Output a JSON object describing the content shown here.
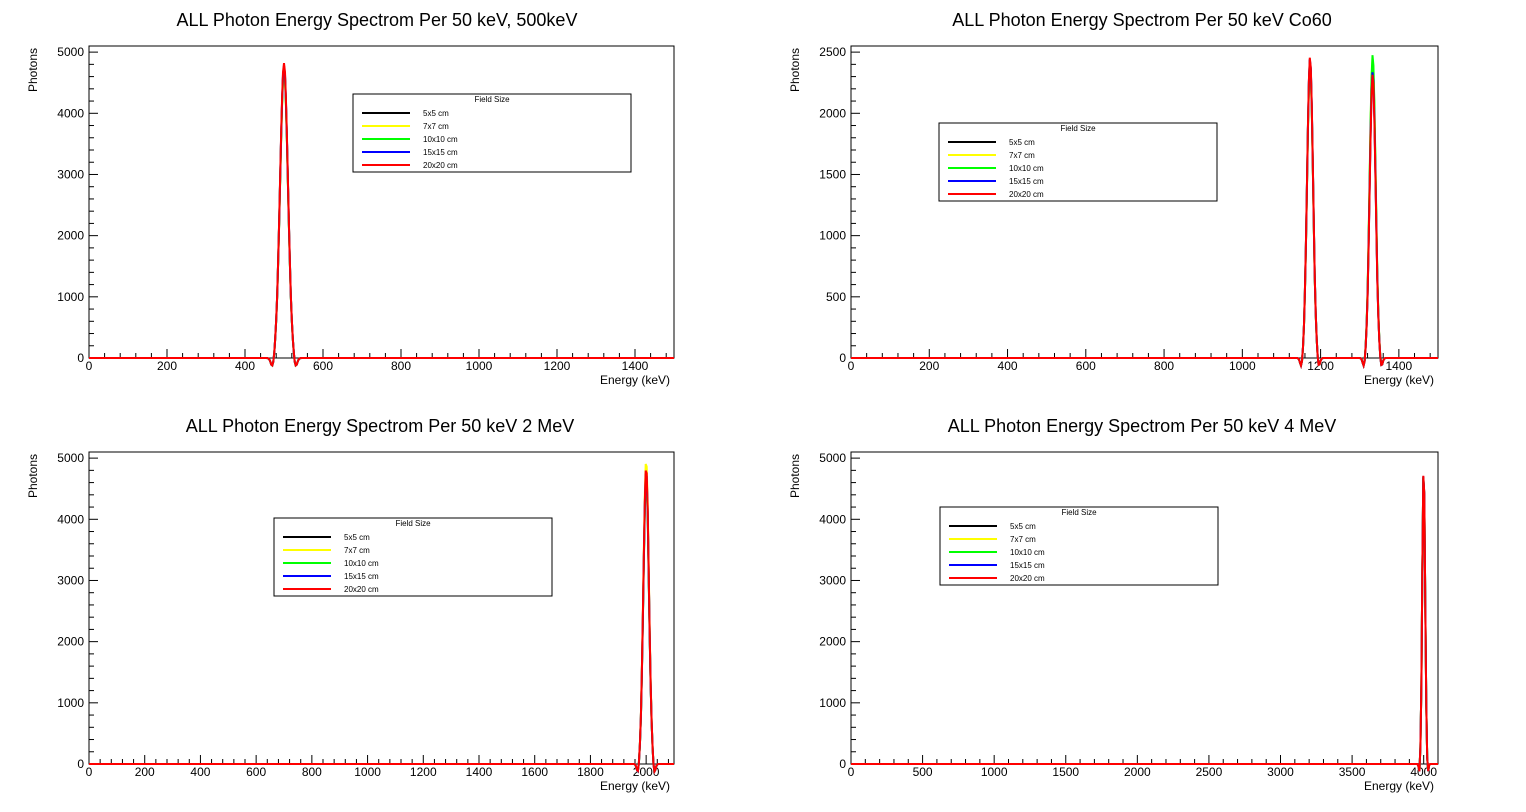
{
  "legend": {
    "title": "Field Size",
    "entries": [
      {
        "label": "5x5 cm",
        "color": "#000000"
      },
      {
        "label": "7x7 cm",
        "color": "#ffff00"
      },
      {
        "label": "10x10 cm",
        "color": "#00ff00"
      },
      {
        "label": "15x15 cm",
        "color": "#0000ff"
      },
      {
        "label": "20x20 cm",
        "color": "#ff0000"
      }
    ]
  },
  "chart_data": [
    {
      "type": "line",
      "title": "ALL Photon Energy Spectrom Per 50 keV, 500keV",
      "xlabel": "Energy (keV)",
      "ylabel": "Photons",
      "xlim": [
        0,
        1500
      ],
      "ylim": [
        0,
        5100
      ],
      "xticks": [
        0,
        200,
        400,
        600,
        800,
        1000,
        1200,
        1400
      ],
      "yticks": [
        0,
        1000,
        2000,
        3000,
        4000,
        5000
      ],
      "legend_position": "top-right",
      "peaks": [
        {
          "series": "5x5 cm",
          "energy": 500,
          "value": 4750
        },
        {
          "series": "7x7 cm",
          "energy": 500,
          "value": 4700
        },
        {
          "series": "10x10 cm",
          "energy": 500,
          "value": 4720
        },
        {
          "series": "15x15 cm",
          "energy": 500,
          "value": 4780
        },
        {
          "series": "20x20 cm",
          "energy": 500,
          "value": 4820
        }
      ]
    },
    {
      "type": "line",
      "title": "ALL Photon Energy Spectrom Per 50 keV Co60",
      "xlabel": "Energy (keV)",
      "ylabel": "Photons",
      "xlim": [
        0,
        1500
      ],
      "ylim": [
        0,
        2550
      ],
      "xticks": [
        0,
        200,
        400,
        600,
        800,
        1000,
        1200,
        1400
      ],
      "yticks": [
        0,
        500,
        1000,
        1500,
        2000,
        2500
      ],
      "legend_position": "middle-left",
      "peaks": [
        {
          "series": "5x5 cm",
          "energy": 1173,
          "value": 2440
        },
        {
          "series": "7x7 cm",
          "energy": 1173,
          "value": 2400
        },
        {
          "series": "10x10 cm",
          "energy": 1173,
          "value": 2420
        },
        {
          "series": "15x15 cm",
          "energy": 1173,
          "value": 2450
        },
        {
          "series": "20x20 cm",
          "energy": 1173,
          "value": 2460
        },
        {
          "series": "5x5 cm",
          "energy": 1333,
          "value": 2400
        },
        {
          "series": "7x7 cm",
          "energy": 1333,
          "value": 2450
        },
        {
          "series": "10x10 cm",
          "energy": 1333,
          "value": 2480
        },
        {
          "series": "15x15 cm",
          "energy": 1333,
          "value": 2340
        },
        {
          "series": "20x20 cm",
          "energy": 1333,
          "value": 2320
        }
      ]
    },
    {
      "type": "line",
      "title": "ALL Photon Energy Spectrom Per 50 keV 2 MeV",
      "xlabel": "Energy (keV)",
      "ylabel": "Photons",
      "xlim": [
        0,
        2100
      ],
      "ylim": [
        0,
        5100
      ],
      "xticks": [
        0,
        200,
        400,
        600,
        800,
        1000,
        1200,
        1400,
        1600,
        1800,
        2000
      ],
      "yticks": [
        0,
        1000,
        2000,
        3000,
        4000,
        5000
      ],
      "legend_position": "middle",
      "peaks": [
        {
          "series": "5x5 cm",
          "energy": 2000,
          "value": 4750
        },
        {
          "series": "7x7 cm",
          "energy": 2000,
          "value": 4960
        },
        {
          "series": "10x10 cm",
          "energy": 2000,
          "value": 4700
        },
        {
          "series": "15x15 cm",
          "energy": 2000,
          "value": 4800
        },
        {
          "series": "20x20 cm",
          "energy": 2000,
          "value": 4850
        }
      ]
    },
    {
      "type": "line",
      "title": "ALL Photon Energy Spectrom Per 50 keV 4 MeV",
      "xlabel": "Energy (keV)",
      "ylabel": "Photons",
      "xlim": [
        0,
        4100
      ],
      "ylim": [
        0,
        5100
      ],
      "xticks": [
        0,
        500,
        1000,
        1500,
        2000,
        2500,
        3000,
        3500,
        4000
      ],
      "yticks": [
        0,
        1000,
        2000,
        3000,
        4000,
        5000
      ],
      "legend_position": "top-left",
      "peaks": [
        {
          "series": "5x5 cm",
          "energy": 4000,
          "value": 4820
        },
        {
          "series": "7x7 cm",
          "energy": 4000,
          "value": 4830
        },
        {
          "series": "10x10 cm",
          "energy": 4000,
          "value": 4840
        },
        {
          "series": "15x15 cm",
          "energy": 4000,
          "value": 4850
        },
        {
          "series": "20x20 cm",
          "energy": 4000,
          "value": 4860
        }
      ]
    }
  ]
}
